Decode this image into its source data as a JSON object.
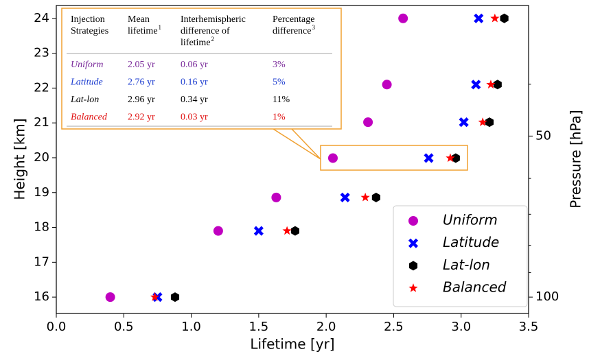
{
  "chart_data": {
    "type": "scatter",
    "x_label": "Lifetime [yr]",
    "y_label": "Height [km]",
    "y2_label": "Pressure [hPa]",
    "xlim": [
      0,
      3.5
    ],
    "xticks": [
      {
        "value": 0,
        "label": "0.0"
      },
      0.5,
      {
        "value": 1,
        "label": "1.0"
      },
      1.5,
      {
        "value": 2,
        "label": "2.0"
      },
      2.5,
      {
        "value": 3,
        "label": "3.0"
      },
      3.5
    ],
    "ylim": [
      15.53,
      24.37
    ],
    "yticks": [
      16,
      17,
      18,
      19,
      20,
      21,
      22,
      23,
      24
    ],
    "y2lim": [
      107.3,
      28.5
    ],
    "y2_log": true,
    "y2ticks": [
      50,
      100
    ],
    "y2minorticks": [
      40,
      60,
      70,
      80,
      90
    ],
    "grid": false,
    "legend": "lower right",
    "y": [
      16.0,
      17.9,
      18.86,
      19.99,
      21.02,
      22.1,
      24.0
    ],
    "series": [
      {
        "name": "Uniform",
        "color": "#c000c0",
        "marker": "circle",
        "x": [
          0.4,
          1.2,
          1.63,
          2.05,
          2.31,
          2.45,
          2.57
        ]
      },
      {
        "name": "Latitude",
        "color": "#0000ff",
        "marker": "x",
        "x": [
          0.75,
          1.5,
          2.14,
          2.76,
          3.02,
          3.11,
          3.13
        ]
      },
      {
        "name": "Lat-lon",
        "color": "#000000",
        "marker": "hexagon",
        "x": [
          0.88,
          1.77,
          2.37,
          2.96,
          3.21,
          3.27,
          3.32
        ]
      },
      {
        "name": "Balanced",
        "color": "#ff0000",
        "marker": "star",
        "x": [
          0.73,
          1.71,
          2.29,
          2.92,
          3.16,
          3.22,
          3.25
        ]
      }
    ],
    "inset_table": {
      "header": [
        {
          "lines": [
            "Injection",
            "Strategies"
          ]
        },
        {
          "lines": [
            "Mean",
            "lifetime"
          ],
          "sup": "1"
        },
        {
          "lines": [
            "Interhemispheric",
            "difference of",
            "lifetime"
          ],
          "sup": "2"
        },
        {
          "lines": [
            "Percentage",
            "difference"
          ],
          "sup": "3"
        }
      ],
      "rows": [
        [
          "Uniform",
          "2.05 yr",
          "0.06 yr",
          "3%"
        ],
        [
          "Latitude",
          "2.76 yr",
          "0.16 yr",
          "5%"
        ],
        [
          "Lat-lon",
          "2.96 yr",
          "0.34 yr",
          "11%"
        ],
        [
          "Balanced",
          "2.92 yr",
          "0.03 yr",
          "1%"
        ]
      ],
      "row_colors": [
        "#7a2a9a",
        "#1f3fd0",
        "#000000",
        "#e01010"
      ]
    }
  }
}
